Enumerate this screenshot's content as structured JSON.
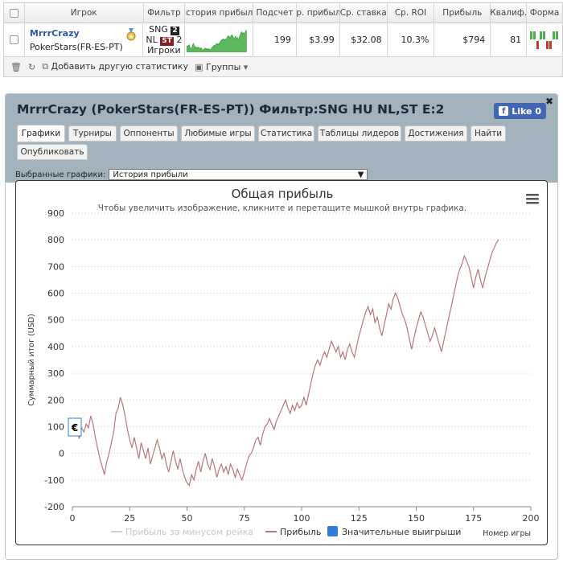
{
  "top_table": {
    "headers": [
      "Игрок",
      "Фильтр",
      "История прибыли",
      "Подсчет",
      "Ср. прибыль",
      "Ср. ставка",
      "Ср. ROI",
      "Прибыль",
      "Квалиф.",
      "Форма"
    ],
    "row": {
      "player_name": "MrrrCrazy",
      "player_site": "PokerStars(FR-ES-PT)",
      "filter_line1": "SNG",
      "filter_badge1": "2",
      "filter_line2": "NL",
      "filter_badge2": "ST",
      "filter_badge2_suffix": "2",
      "filter_line3": "Игроки",
      "count": "199",
      "avg_profit": "$3.99",
      "avg_stake": "$32.08",
      "avg_roi": "10.3%",
      "profit": "$794",
      "qualif": "81",
      "form": [
        1,
        1,
        0,
        1,
        1,
        0,
        0,
        1,
        1
      ]
    },
    "toolbar": {
      "add_stats": "Добавить другую статистику",
      "groups": "Группы"
    }
  },
  "panel": {
    "title": "MrrrCrazy (PokerStars(FR-ES-PT)) Фильтр:SNG HU NL,ST E:2",
    "like_label": "Like 0",
    "tabs": [
      "Графики",
      "Турниры",
      "Оппоненты",
      "Любимые игры",
      "Статистика",
      "Таблицы лидеров",
      "Достижения",
      "Найти",
      "Опубликовать"
    ],
    "selector_label": "Выбранные графики:",
    "selector_value": "История прибыли"
  },
  "chart_data": {
    "type": "line",
    "title": "Общая прибыль",
    "subtitle": "Чтобы увеличить изображение, кликните и перетащите мышкой внутрь графика.",
    "xlabel": "Номер игры",
    "ylabel": "Суммарный итог (USD)",
    "xlim": [
      0,
      200
    ],
    "ylim": [
      -200,
      900
    ],
    "x_ticks": [
      0,
      25,
      50,
      75,
      100,
      125,
      150,
      175,
      200
    ],
    "y_ticks": [
      -200,
      -100,
      0,
      100,
      200,
      300,
      400,
      500,
      600,
      700,
      800,
      900
    ],
    "grid": true,
    "legend_placement": "bottom",
    "legend": [
      "Прибыль за минусом рейка",
      "Прибыль",
      "Значительные выигрыши"
    ],
    "currency_marker": "€",
    "series": [
      {
        "name": "Прибыль",
        "color": "#b9777a",
        "points": [
          [
            0,
            100
          ],
          [
            1,
            70
          ],
          [
            2,
            90
          ],
          [
            3,
            55
          ],
          [
            4,
            95
          ],
          [
            5,
            80
          ],
          [
            6,
            110
          ],
          [
            7,
            95
          ],
          [
            8,
            140
          ],
          [
            9,
            110
          ],
          [
            10,
            60
          ],
          [
            11,
            20
          ],
          [
            12,
            -20
          ],
          [
            13,
            -50
          ],
          [
            14,
            -80
          ],
          [
            15,
            -30
          ],
          [
            16,
            0
          ],
          [
            17,
            40
          ],
          [
            18,
            80
          ],
          [
            19,
            150
          ],
          [
            20,
            170
          ],
          [
            21,
            210
          ],
          [
            22,
            180
          ],
          [
            23,
            140
          ],
          [
            24,
            90
          ],
          [
            25,
            50
          ],
          [
            26,
            20
          ],
          [
            27,
            60
          ],
          [
            28,
            20
          ],
          [
            29,
            -20
          ],
          [
            30,
            40
          ],
          [
            31,
            10
          ],
          [
            32,
            -20
          ],
          [
            33,
            20
          ],
          [
            34,
            -40
          ],
          [
            35,
            -10
          ],
          [
            36,
            20
          ],
          [
            37,
            50
          ],
          [
            38,
            20
          ],
          [
            39,
            -20
          ],
          [
            40,
            0
          ],
          [
            41,
            -40
          ],
          [
            42,
            -70
          ],
          [
            43,
            -30
          ],
          [
            44,
            10
          ],
          [
            45,
            -30
          ],
          [
            46,
            -60
          ],
          [
            47,
            -20
          ],
          [
            48,
            -60
          ],
          [
            49,
            -90
          ],
          [
            50,
            -110
          ],
          [
            51,
            -120
          ],
          [
            52,
            -80
          ],
          [
            53,
            -100
          ],
          [
            54,
            -60
          ],
          [
            55,
            -30
          ],
          [
            56,
            -70
          ],
          [
            57,
            -30
          ],
          [
            58,
            0
          ],
          [
            59,
            -40
          ],
          [
            60,
            -60
          ],
          [
            61,
            -20
          ],
          [
            62,
            -50
          ],
          [
            63,
            -90
          ],
          [
            64,
            -60
          ],
          [
            65,
            -40
          ],
          [
            66,
            -70
          ],
          [
            67,
            -50
          ],
          [
            68,
            -80
          ],
          [
            69,
            -40
          ],
          [
            70,
            -60
          ],
          [
            71,
            -90
          ],
          [
            72,
            -60
          ],
          [
            73,
            -80
          ],
          [
            74,
            -100
          ],
          [
            75,
            -70
          ],
          [
            76,
            -40
          ],
          [
            77,
            -10
          ],
          [
            78,
            0
          ],
          [
            79,
            20
          ],
          [
            80,
            50
          ],
          [
            81,
            60
          ],
          [
            82,
            30
          ],
          [
            83,
            70
          ],
          [
            84,
            100
          ],
          [
            85,
            110
          ],
          [
            86,
            130
          ],
          [
            87,
            110
          ],
          [
            88,
            90
          ],
          [
            89,
            120
          ],
          [
            90,
            140
          ],
          [
            91,
            160
          ],
          [
            92,
            180
          ],
          [
            93,
            200
          ],
          [
            94,
            170
          ],
          [
            95,
            150
          ],
          [
            96,
            180
          ],
          [
            97,
            160
          ],
          [
            98,
            190
          ],
          [
            99,
            170
          ],
          [
            100,
            180
          ],
          [
            101,
            210
          ],
          [
            102,
            180
          ],
          [
            103,
            220
          ],
          [
            104,
            260
          ],
          [
            105,
            300
          ],
          [
            106,
            330
          ],
          [
            107,
            350
          ],
          [
            108,
            330
          ],
          [
            109,
            360
          ],
          [
            110,
            380
          ],
          [
            111,
            360
          ],
          [
            112,
            390
          ],
          [
            113,
            420
          ],
          [
            114,
            400
          ],
          [
            115,
            380
          ],
          [
            116,
            400
          ],
          [
            117,
            360
          ],
          [
            118,
            380
          ],
          [
            119,
            350
          ],
          [
            120,
            390
          ],
          [
            121,
            410
          ],
          [
            122,
            380
          ],
          [
            123,
            360
          ],
          [
            124,
            400
          ],
          [
            125,
            440
          ],
          [
            126,
            470
          ],
          [
            127,
            500
          ],
          [
            128,
            530
          ],
          [
            129,
            550
          ],
          [
            130,
            520
          ],
          [
            131,
            540
          ],
          [
            132,
            490
          ],
          [
            133,
            510
          ],
          [
            134,
            470
          ],
          [
            135,
            440
          ],
          [
            136,
            480
          ],
          [
            137,
            520
          ],
          [
            138,
            560
          ],
          [
            139,
            540
          ],
          [
            140,
            580
          ],
          [
            141,
            600
          ],
          [
            142,
            580
          ],
          [
            143,
            550
          ],
          [
            144,
            520
          ],
          [
            145,
            500
          ],
          [
            146,
            470
          ],
          [
            147,
            430
          ],
          [
            148,
            390
          ],
          [
            149,
            430
          ],
          [
            150,
            470
          ],
          [
            151,
            500
          ],
          [
            152,
            530
          ],
          [
            153,
            510
          ],
          [
            154,
            480
          ],
          [
            155,
            450
          ],
          [
            156,
            420
          ],
          [
            157,
            440
          ],
          [
            158,
            470
          ],
          [
            159,
            440
          ],
          [
            160,
            410
          ],
          [
            161,
            380
          ],
          [
            162,
            420
          ],
          [
            163,
            460
          ],
          [
            164,
            500
          ],
          [
            165,
            540
          ],
          [
            166,
            580
          ],
          [
            167,
            620
          ],
          [
            168,
            660
          ],
          [
            169,
            690
          ],
          [
            170,
            710
          ],
          [
            171,
            740
          ],
          [
            172,
            720
          ],
          [
            173,
            700
          ],
          [
            174,
            660
          ],
          [
            175,
            620
          ],
          [
            176,
            660
          ],
          [
            177,
            690
          ],
          [
            178,
            650
          ],
          [
            179,
            620
          ],
          [
            180,
            660
          ],
          [
            181,
            690
          ],
          [
            182,
            720
          ],
          [
            183,
            750
          ],
          [
            184,
            770
          ],
          [
            185,
            790
          ],
          [
            186,
            800
          ]
        ]
      }
    ]
  }
}
